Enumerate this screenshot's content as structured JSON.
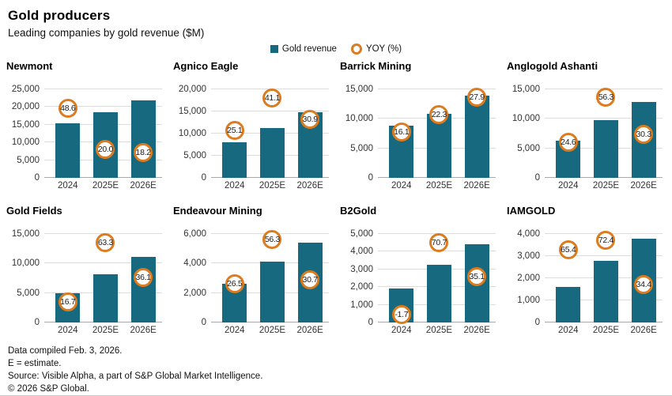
{
  "header": {
    "title": "Gold producers",
    "subtitle": "Leading companies by gold revenue ($M)"
  },
  "legend": {
    "bar_label": "Gold revenue",
    "ring_label": "YOY (%)"
  },
  "colors": {
    "bar": "#16697E",
    "ring": "#DD7B1F",
    "grid": "#dcdcdc",
    "baseline": "#a9a9a9",
    "axis_text": "#333333"
  },
  "chart_data": [
    {
      "type": "bar",
      "title": "Newmont",
      "categories": [
        "2024",
        "2025E",
        "2026E"
      ],
      "series": [
        {
          "name": "Gold revenue",
          "values": [
            15400,
            18500,
            21900
          ]
        },
        {
          "name": "YOY (%)",
          "values": [
            48.6,
            20.0,
            18.2
          ]
        }
      ],
      "ylim": [
        0,
        25000
      ],
      "ystep": 5000,
      "grid": true,
      "yoy_marker_y": [
        19600,
        8100,
        7100
      ]
    },
    {
      "type": "bar",
      "title": "Agnico Eagle",
      "categories": [
        "2024",
        "2025E",
        "2026E"
      ],
      "series": [
        {
          "name": "Gold revenue",
          "values": [
            8000,
            11300,
            14800
          ]
        },
        {
          "name": "YOY (%)",
          "values": [
            25.1,
            41.1,
            30.9
          ]
        }
      ],
      "ylim": [
        0,
        20000
      ],
      "ystep": 5000,
      "grid": true,
      "yoy_marker_y": [
        10800,
        18000,
        13300
      ]
    },
    {
      "type": "bar",
      "title": "Barrick Mining",
      "categories": [
        "2024",
        "2025E",
        "2026E"
      ],
      "series": [
        {
          "name": "Gold revenue",
          "values": [
            8900,
            10900,
            13900
          ]
        },
        {
          "name": "YOY (%)",
          "values": [
            16.1,
            22.3,
            27.9
          ]
        }
      ],
      "ylim": [
        0,
        15000
      ],
      "ystep": 5000,
      "grid": true,
      "yoy_marker_y": [
        7800,
        10700,
        13600
      ]
    },
    {
      "type": "bar",
      "title": "Anglogold Ashanti",
      "categories": [
        "2024",
        "2025E",
        "2026E"
      ],
      "series": [
        {
          "name": "Gold revenue",
          "values": [
            6300,
            9800,
            12800
          ]
        },
        {
          "name": "YOY (%)",
          "values": [
            24.6,
            56.3,
            30.3
          ]
        }
      ],
      "ylim": [
        0,
        15000
      ],
      "ystep": 5000,
      "grid": true,
      "yoy_marker_y": [
        6000,
        13700,
        7400
      ]
    },
    {
      "type": "bar",
      "title": "Gold Fields",
      "categories": [
        "2024",
        "2025E",
        "2026E"
      ],
      "series": [
        {
          "name": "Gold revenue",
          "values": [
            5000,
            8200,
            11100
          ]
        },
        {
          "name": "YOY (%)",
          "values": [
            16.7,
            63.3,
            36.1
          ]
        }
      ],
      "ylim": [
        0,
        15000
      ],
      "ystep": 5000,
      "grid": true,
      "yoy_marker_y": [
        3500,
        13500,
        7600
      ]
    },
    {
      "type": "bar",
      "title": "Endeavour Mining",
      "categories": [
        "2024",
        "2025E",
        "2026E"
      ],
      "series": [
        {
          "name": "Gold revenue",
          "values": [
            2600,
            4100,
            5400
          ]
        },
        {
          "name": "YOY (%)",
          "values": [
            26.5,
            56.3,
            30.7
          ]
        }
      ],
      "ylim": [
        0,
        6000
      ],
      "ystep": 2000,
      "grid": true,
      "yoy_marker_y": [
        2600,
        5600,
        2900
      ]
    },
    {
      "type": "bar",
      "title": "B2Gold",
      "categories": [
        "2024",
        "2025E",
        "2026E"
      ],
      "series": [
        {
          "name": "Gold revenue",
          "values": [
            1900,
            3250,
            4400
          ]
        },
        {
          "name": "YOY (%)",
          "values": [
            -1.7,
            70.7,
            35.1
          ]
        }
      ],
      "ylim": [
        0,
        5000
      ],
      "ystep": 1000,
      "grid": true,
      "yoy_marker_y": [
        430,
        4500,
        2600
      ]
    },
    {
      "type": "bar",
      "title": "IAMGOLD",
      "categories": [
        "2024",
        "2025E",
        "2026E"
      ],
      "series": [
        {
          "name": "Gold revenue",
          "values": [
            1600,
            2800,
            3800
          ]
        },
        {
          "name": "YOY (%)",
          "values": [
            65.4,
            72.4,
            34.4
          ]
        }
      ],
      "ylim": [
        0,
        4000
      ],
      "ystep": 1000,
      "grid": true,
      "yoy_marker_y": [
        3300,
        3700,
        1700
      ]
    }
  ],
  "footer": {
    "lines": [
      "Data compiled Feb. 3, 2026.",
      "E = estimate.",
      "Source: Visible Alpha, a part of S&P Global Market Intelligence.",
      "© 2026 S&P Global."
    ]
  }
}
